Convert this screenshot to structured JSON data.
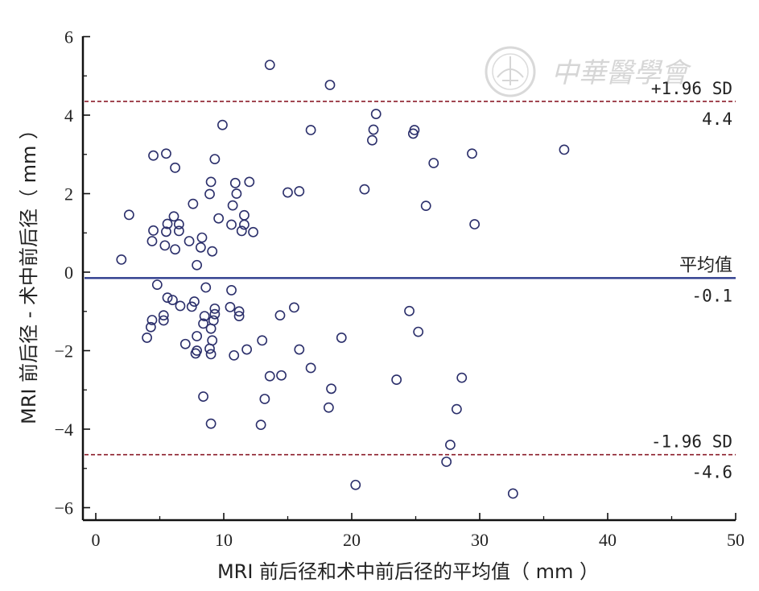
{
  "chart_data": {
    "type": "scatter",
    "title": "",
    "xlabel": "MRI 前后径和术中前后径的平均值（ mm ）",
    "ylabel": "MRI 前后径 - 术中前后径（ mm ）",
    "xlim": [
      -1,
      51
    ],
    "ylim": [
      -6.3,
      6.1
    ],
    "x_ticks": [
      0,
      10,
      20,
      30,
      40,
      50
    ],
    "y_ticks": [
      -6,
      -4,
      -2,
      0,
      2,
      4,
      6
    ],
    "grid": false,
    "reference_lines": [
      {
        "name": "upper_loa",
        "y": 4.35,
        "label": "+1.96 SD",
        "value_label": "4.4",
        "color": "#8b1c2a",
        "style": "dashed"
      },
      {
        "name": "mean",
        "y": -0.15,
        "label": "平均值",
        "value_label": "-0.1",
        "color": "#2b3a8c",
        "style": "solid"
      },
      {
        "name": "lower_loa",
        "y": -4.65,
        "label": "-1.96 SD",
        "value_label": "-4.6",
        "color": "#8b1c2a",
        "style": "dashed"
      }
    ],
    "series": [
      {
        "marker_color": "#2b2f6b",
        "points": [
          [
            13.6,
            5.28
          ],
          [
            18.3,
            4.77
          ],
          [
            21.9,
            4.03
          ],
          [
            9.9,
            3.75
          ],
          [
            16.8,
            3.62
          ],
          [
            21.7,
            3.63
          ],
          [
            24.9,
            3.62
          ],
          [
            24.8,
            3.53
          ],
          [
            21.6,
            3.36
          ],
          [
            36.6,
            3.12
          ],
          [
            4.5,
            2.97
          ],
          [
            5.5,
            3.02
          ],
          [
            29.4,
            3.02
          ],
          [
            9.3,
            2.88
          ],
          [
            26.4,
            2.78
          ],
          [
            6.2,
            2.66
          ],
          [
            9.0,
            2.3
          ],
          [
            10.9,
            2.27
          ],
          [
            12.0,
            2.3
          ],
          [
            21.0,
            2.11
          ],
          [
            15.0,
            2.03
          ],
          [
            15.9,
            2.06
          ],
          [
            8.9,
            1.99
          ],
          [
            11.0,
            2.0
          ],
          [
            7.6,
            1.74
          ],
          [
            10.7,
            1.7
          ],
          [
            25.8,
            1.69
          ],
          [
            2.6,
            1.46
          ],
          [
            6.1,
            1.42
          ],
          [
            11.6,
            1.45
          ],
          [
            9.6,
            1.37
          ],
          [
            5.6,
            1.23
          ],
          [
            6.5,
            1.22
          ],
          [
            10.6,
            1.21
          ],
          [
            11.6,
            1.21
          ],
          [
            29.6,
            1.22
          ],
          [
            4.5,
            1.06
          ],
          [
            5.5,
            1.03
          ],
          [
            6.5,
            1.05
          ],
          [
            11.4,
            1.05
          ],
          [
            12.3,
            1.02
          ],
          [
            8.3,
            0.88
          ],
          [
            4.4,
            0.79
          ],
          [
            7.3,
            0.79
          ],
          [
            5.4,
            0.68
          ],
          [
            6.2,
            0.58
          ],
          [
            8.2,
            0.63
          ],
          [
            9.1,
            0.53
          ],
          [
            2.0,
            0.32
          ],
          [
            7.9,
            0.18
          ],
          [
            4.8,
            -0.32
          ],
          [
            8.6,
            -0.39
          ],
          [
            10.6,
            -0.46
          ],
          [
            5.6,
            -0.65
          ],
          [
            6.0,
            -0.71
          ],
          [
            7.7,
            -0.75
          ],
          [
            7.5,
            -0.88
          ],
          [
            6.6,
            -0.86
          ],
          [
            9.3,
            -0.93
          ],
          [
            10.5,
            -0.89
          ],
          [
            15.5,
            -0.9
          ],
          [
            24.5,
            -0.99
          ],
          [
            5.3,
            -1.1
          ],
          [
            9.3,
            -1.07
          ],
          [
            11.2,
            -1.0
          ],
          [
            14.4,
            -1.1
          ],
          [
            4.4,
            -1.22
          ],
          [
            5.3,
            -1.23
          ],
          [
            8.5,
            -1.12
          ],
          [
            9.2,
            -1.23
          ],
          [
            11.2,
            -1.12
          ],
          [
            4.3,
            -1.4
          ],
          [
            8.4,
            -1.31
          ],
          [
            9.0,
            -1.44
          ],
          [
            25.2,
            -1.52
          ],
          [
            4.0,
            -1.67
          ],
          [
            7.9,
            -1.63
          ],
          [
            9.1,
            -1.74
          ],
          [
            13.0,
            -1.74
          ],
          [
            19.2,
            -1.67
          ],
          [
            7.0,
            -1.83
          ],
          [
            7.9,
            -2.0
          ],
          [
            8.9,
            -1.95
          ],
          [
            11.8,
            -1.97
          ],
          [
            15.9,
            -1.97
          ],
          [
            7.8,
            -2.07
          ],
          [
            9.0,
            -2.09
          ],
          [
            10.8,
            -2.12
          ],
          [
            13.6,
            -2.65
          ],
          [
            16.8,
            -2.44
          ],
          [
            14.5,
            -2.63
          ],
          [
            23.5,
            -2.74
          ],
          [
            28.6,
            -2.69
          ],
          [
            18.4,
            -2.97
          ],
          [
            8.4,
            -3.17
          ],
          [
            13.2,
            -3.23
          ],
          [
            18.2,
            -3.45
          ],
          [
            28.2,
            -3.49
          ],
          [
            9.0,
            -3.86
          ],
          [
            12.9,
            -3.89
          ],
          [
            27.7,
            -4.4
          ],
          [
            27.4,
            -4.83
          ],
          [
            20.3,
            -5.42
          ],
          [
            32.6,
            -5.64
          ]
        ]
      }
    ]
  },
  "watermark": {
    "text": "中華醫學會",
    "seal_color": "#d9d9d9"
  }
}
